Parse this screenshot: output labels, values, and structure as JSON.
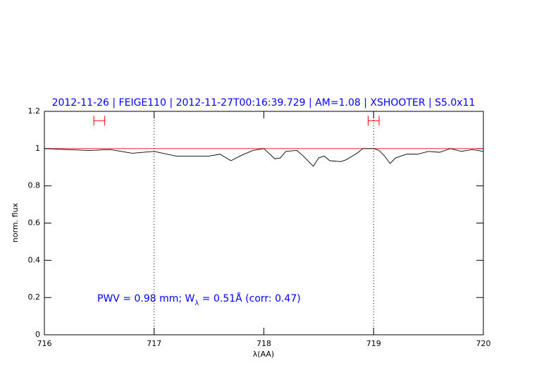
{
  "chart_data": {
    "type": "line",
    "title": "2012-11-26 | FEIGE110 | 2012-11-27T00:16:39.729 | AM=1.08 | XSHOOTER | S5.0x11",
    "x_label": "λ(AA)",
    "y_label": "norm. flux",
    "annotation": [
      "PWV  =  0.98  mm;  W",
      "λ",
      "  =  0.51Å  (corr:  0.47)"
    ],
    "x": [
      716.0,
      716.2,
      716.4,
      716.6,
      716.8,
      717.0,
      717.2,
      717.4,
      717.5,
      717.6,
      717.7,
      717.8,
      717.9,
      718.0,
      718.1,
      718.15,
      718.2,
      718.3,
      718.35,
      718.45,
      718.5,
      718.55,
      718.6,
      718.7,
      718.75,
      718.85,
      718.9,
      719.0,
      719.05,
      719.1,
      719.15,
      719.2,
      719.3,
      719.4,
      719.5,
      719.6,
      719.7,
      719.8,
      719.9,
      720.0
    ],
    "series": [
      {
        "color": "#000000",
        "values": [
          1.0,
          0.995,
          0.99,
          0.995,
          0.975,
          0.985,
          0.96,
          0.96,
          0.96,
          0.97,
          0.935,
          0.965,
          0.99,
          1.0,
          0.945,
          0.95,
          0.985,
          0.99,
          0.965,
          0.905,
          0.95,
          0.96,
          0.935,
          0.93,
          0.94,
          0.975,
          1.0,
          1.0,
          0.99,
          0.96,
          0.92,
          0.95,
          0.97,
          0.97,
          0.985,
          0.98,
          1.0,
          0.985,
          0.995,
          0.985
        ]
      }
    ],
    "continuum": {
      "value": 1,
      "color": "#ff0000"
    },
    "vlines": [
      717,
      719
    ],
    "red_markers": [
      {
        "x": [
          716.45,
          716.55
        ],
        "y": 1.15
      },
      {
        "x": [
          718.95,
          719.05
        ],
        "y": 1.15
      }
    ],
    "xlim": [
      716,
      720
    ],
    "xticks": [
      716,
      717,
      718,
      719,
      720
    ],
    "ylim": [
      0,
      1.2
    ],
    "yticks": [
      0,
      0.2,
      0.4,
      0.6,
      0.8,
      1,
      1.2
    ],
    "text_color": "#0000ff"
  }
}
